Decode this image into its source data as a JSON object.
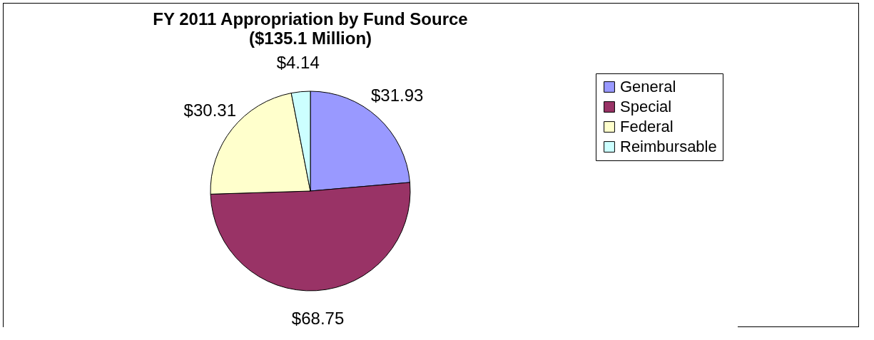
{
  "chart_data": {
    "type": "pie",
    "title": "FY 2011 Appropriation by Fund Source",
    "subtitle": "($135.1 Million)",
    "categories": [
      "General",
      "Special",
      "Federal",
      "Reimbursable"
    ],
    "values": [
      31.93,
      68.75,
      30.31,
      4.14
    ],
    "value_labels": [
      "$31.93",
      "$68.75",
      "$30.31",
      "$4.14"
    ],
    "colors": [
      "#9999ff",
      "#993366",
      "#ffffcc",
      "#ccffff"
    ],
    "legend": "right"
  }
}
